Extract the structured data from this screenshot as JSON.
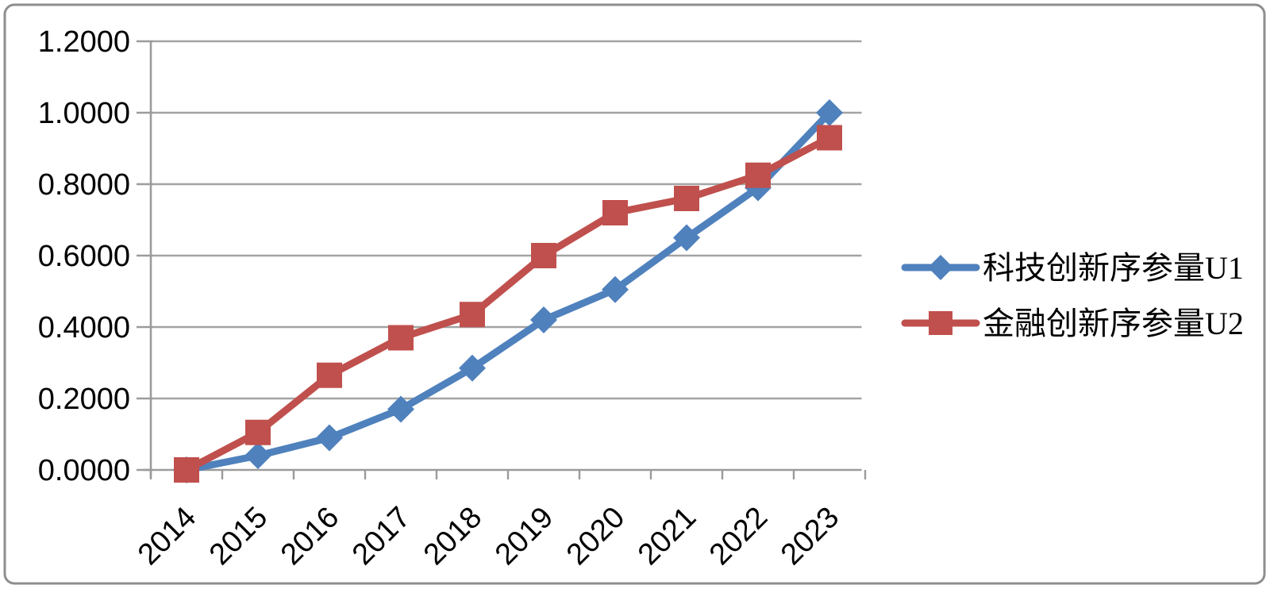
{
  "chart_data": {
    "type": "line",
    "title": "",
    "categories": [
      "2014",
      "2015",
      "2016",
      "2017",
      "2018",
      "2019",
      "2020",
      "2021",
      "2022",
      "2023"
    ],
    "series": [
      {
        "name": "科技创新序参量U1",
        "marker": "diamond",
        "color": "#4F81BD",
        "values": [
          0.0,
          0.04,
          0.09,
          0.17,
          0.285,
          0.42,
          0.505,
          0.65,
          0.79,
          1.0
        ]
      },
      {
        "name": "金融创新序参量U2",
        "marker": "square",
        "color": "#C0504D",
        "values": [
          0.0,
          0.105,
          0.265,
          0.37,
          0.435,
          0.6,
          0.72,
          0.76,
          0.825,
          0.93
        ]
      }
    ],
    "ylim": [
      0,
      1.2
    ],
    "ytick_step": 0.2,
    "ytick_labels": [
      "0.0000",
      "0.2000",
      "0.4000",
      "0.6000",
      "0.8000",
      "1.0000",
      "1.2000"
    ],
    "xlabel": "",
    "ylabel": "",
    "grid": true,
    "legend_position": "right",
    "x_label_rotation": -45,
    "colors": {
      "grid": "#A3A3A3",
      "axis": "#9B9B9B",
      "tick": "#9B9B9B",
      "text": "#000000",
      "background": "#FFFFFF",
      "frame_border": "#8E8E8E"
    }
  }
}
